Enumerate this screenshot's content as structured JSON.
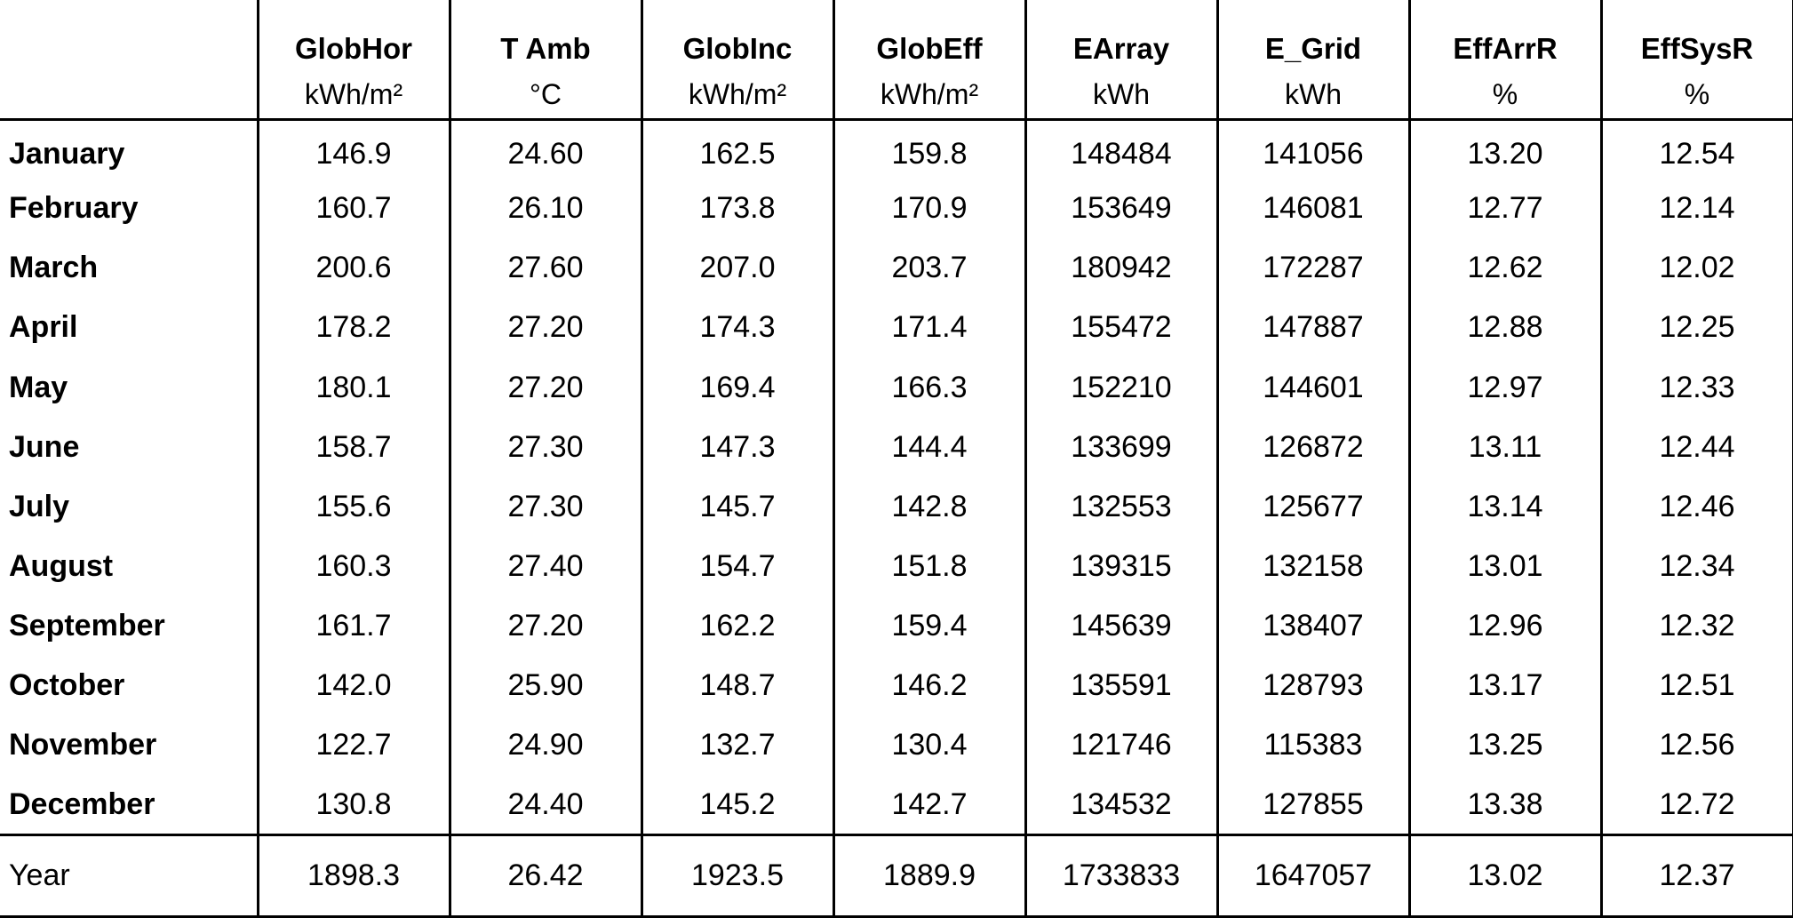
{
  "table": {
    "columns": [
      {
        "name": "GlobHor",
        "unit": "kWh/m²"
      },
      {
        "name": "T Amb",
        "unit": "°C"
      },
      {
        "name": "GlobInc",
        "unit": "kWh/m²"
      },
      {
        "name": "GlobEff",
        "unit": "kWh/m²"
      },
      {
        "name": "EArray",
        "unit": "kWh"
      },
      {
        "name": "E_Grid",
        "unit": "kWh"
      },
      {
        "name": "EffArrR",
        "unit": "%"
      },
      {
        "name": "EffSysR",
        "unit": "%"
      }
    ],
    "rows": [
      {
        "label": "January",
        "values": [
          "146.9",
          "24.60",
          "162.5",
          "159.8",
          "148484",
          "141056",
          "13.20",
          "12.54"
        ]
      },
      {
        "label": "February",
        "values": [
          "160.7",
          "26.10",
          "173.8",
          "170.9",
          "153649",
          "146081",
          "12.77",
          "12.14"
        ]
      },
      {
        "label": "March",
        "values": [
          "200.6",
          "27.60",
          "207.0",
          "203.7",
          "180942",
          "172287",
          "12.62",
          "12.02"
        ]
      },
      {
        "label": "April",
        "values": [
          "178.2",
          "27.20",
          "174.3",
          "171.4",
          "155472",
          "147887",
          "12.88",
          "12.25"
        ]
      },
      {
        "label": "May",
        "values": [
          "180.1",
          "27.20",
          "169.4",
          "166.3",
          "152210",
          "144601",
          "12.97",
          "12.33"
        ]
      },
      {
        "label": "June",
        "values": [
          "158.7",
          "27.30",
          "147.3",
          "144.4",
          "133699",
          "126872",
          "13.11",
          "12.44"
        ]
      },
      {
        "label": "July",
        "values": [
          "155.6",
          "27.30",
          "145.7",
          "142.8",
          "132553",
          "125677",
          "13.14",
          "12.46"
        ]
      },
      {
        "label": "August",
        "values": [
          "160.3",
          "27.40",
          "154.7",
          "151.8",
          "139315",
          "132158",
          "13.01",
          "12.34"
        ]
      },
      {
        "label": "September",
        "values": [
          "161.7",
          "27.20",
          "162.2",
          "159.4",
          "145639",
          "138407",
          "12.96",
          "12.32"
        ]
      },
      {
        "label": "October",
        "values": [
          "142.0",
          "25.90",
          "148.7",
          "146.2",
          "135591",
          "128793",
          "13.17",
          "12.51"
        ]
      },
      {
        "label": "November",
        "values": [
          "122.7",
          "24.90",
          "132.7",
          "130.4",
          "121746",
          "115383",
          "13.25",
          "12.56"
        ]
      },
      {
        "label": "December",
        "values": [
          "130.8",
          "24.40",
          "145.2",
          "142.7",
          "134532",
          "127855",
          "13.38",
          "12.72"
        ]
      }
    ],
    "total": {
      "label": "Year",
      "values": [
        "1898.3",
        "26.42",
        "1923.5",
        "1889.9",
        "1733833",
        "1647057",
        "13.02",
        "12.37"
      ]
    }
  }
}
